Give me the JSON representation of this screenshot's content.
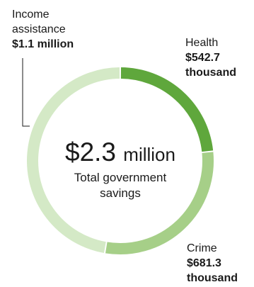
{
  "chart_data": {
    "type": "pie",
    "variant": "donut",
    "total": {
      "value": "$2.3",
      "unit": "million",
      "caption_lines": [
        "Total government",
        "savings"
      ]
    },
    "slices": [
      {
        "name": "Health",
        "value_label": "$542.7 thousand",
        "value": 542.7,
        "color": "#5fa73c"
      },
      {
        "name": "Crime",
        "value_label": "$681.3 thousand",
        "value": 681.3,
        "color": "#a6cf88"
      },
      {
        "name": "Income assistance",
        "value_label": "$1.1 million",
        "value": 1100,
        "color": "#d4e9c6"
      }
    ],
    "labels": {
      "income": {
        "name_lines": [
          "Income",
          "assistance"
        ],
        "value_lines": [
          "$1.1 million"
        ]
      },
      "health": {
        "name_lines": [
          "Health"
        ],
        "value_lines": [
          "$542.7",
          "thousand"
        ]
      },
      "crime": {
        "name_lines": [
          "Crime"
        ],
        "value_lines": [
          "$681.3",
          "thousand"
        ]
      }
    }
  }
}
